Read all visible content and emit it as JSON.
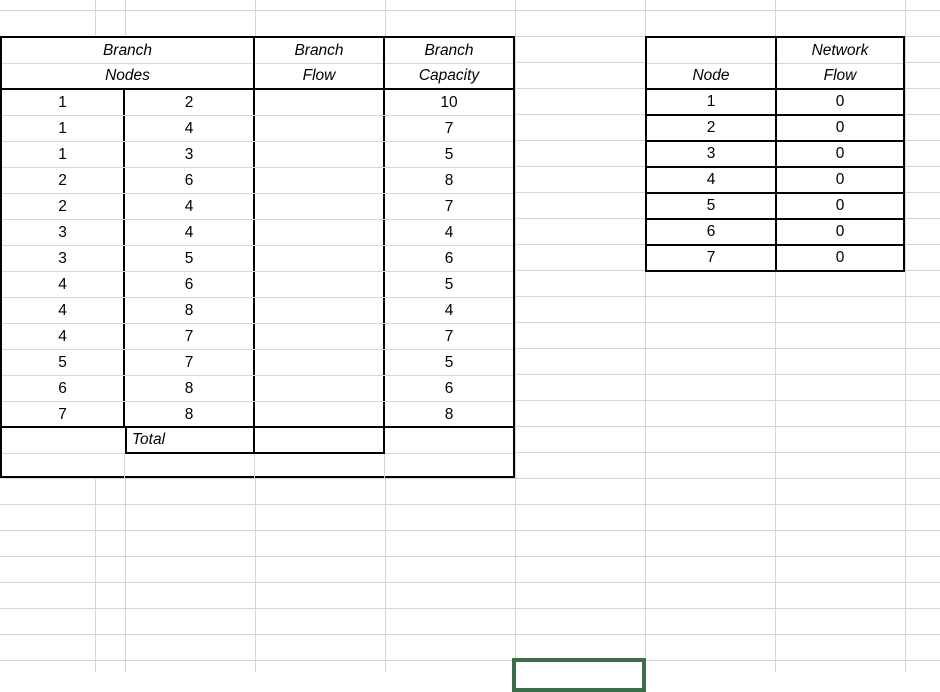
{
  "app": {
    "kind": "spreadsheet-worksheet"
  },
  "colors": {
    "gridline": "#d6d6d6",
    "table_border": "#000000",
    "selection_green": "#3a6e48"
  },
  "branch_table": {
    "header": {
      "nodes": [
        "Branch",
        "Nodes"
      ],
      "flow": [
        "Branch",
        "Flow"
      ],
      "capacity": [
        "Branch",
        "Capacity"
      ]
    },
    "rows": [
      {
        "from": "1",
        "to": "2",
        "flow": "",
        "capacity": "10"
      },
      {
        "from": "1",
        "to": "4",
        "flow": "",
        "capacity": "7"
      },
      {
        "from": "1",
        "to": "3",
        "flow": "",
        "capacity": "5"
      },
      {
        "from": "2",
        "to": "6",
        "flow": "",
        "capacity": "8"
      },
      {
        "from": "2",
        "to": "4",
        "flow": "",
        "capacity": "7"
      },
      {
        "from": "3",
        "to": "4",
        "flow": "",
        "capacity": "4"
      },
      {
        "from": "3",
        "to": "5",
        "flow": "",
        "capacity": "6"
      },
      {
        "from": "4",
        "to": "6",
        "flow": "",
        "capacity": "5"
      },
      {
        "from": "4",
        "to": "8",
        "flow": "",
        "capacity": "4"
      },
      {
        "from": "4",
        "to": "7",
        "flow": "",
        "capacity": "7"
      },
      {
        "from": "5",
        "to": "7",
        "flow": "",
        "capacity": "5"
      },
      {
        "from": "6",
        "to": "8",
        "flow": "",
        "capacity": "6"
      },
      {
        "from": "7",
        "to": "8",
        "flow": "",
        "capacity": "8"
      }
    ],
    "total": {
      "label": "Total",
      "flow": "",
      "capacity": ""
    }
  },
  "node_table": {
    "header": {
      "node": [
        "",
        "Node"
      ],
      "flow": [
        "Network",
        "Flow"
      ]
    },
    "rows": [
      {
        "node": "1",
        "flow": "0"
      },
      {
        "node": "2",
        "flow": "0"
      },
      {
        "node": "3",
        "flow": "0"
      },
      {
        "node": "4",
        "flow": "0"
      },
      {
        "node": "5",
        "flow": "0"
      },
      {
        "node": "6",
        "flow": "0"
      },
      {
        "node": "7",
        "flow": "0"
      }
    ]
  },
  "selection": {
    "style": "border-color:#3a6e48;",
    "value": ""
  }
}
